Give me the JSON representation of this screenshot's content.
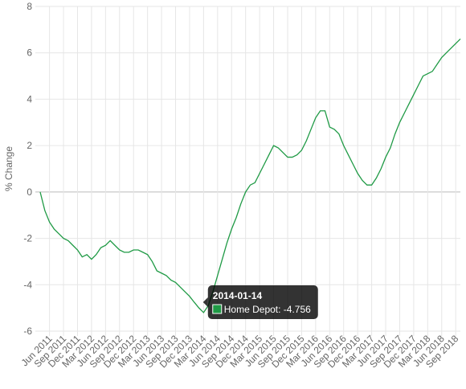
{
  "chart_data": {
    "type": "line",
    "y_label": "% Change",
    "categories": [
      null,
      null,
      "Jun 2011",
      null,
      null,
      "Sep 2011",
      null,
      null,
      "Dec 2011",
      null,
      null,
      "Mar 2012",
      null,
      null,
      "Jun 2012",
      null,
      null,
      "Sep 2012",
      null,
      null,
      "Dec 2012",
      null,
      null,
      "Mar 2013",
      null,
      null,
      "Jun 2013",
      null,
      null,
      "Sep 2013",
      null,
      null,
      "Dec 2013",
      null,
      null,
      "Mar 2014",
      null,
      null,
      "Jun 2014",
      null,
      null,
      "Sep 2014",
      null,
      null,
      "Dec 2014",
      null,
      null,
      "Mar 2015",
      null,
      null,
      "Jun 2015",
      null,
      null,
      "Sep 2015",
      null,
      null,
      "Dec 2015",
      null,
      null,
      "Mar 2016",
      null,
      null,
      "Jun 2016",
      null,
      null,
      "Sep 2016",
      null,
      null,
      "Dec 2016",
      null,
      null,
      "Mar 2017",
      null,
      null,
      "Jun 2017",
      null,
      null,
      "Sep 2017",
      null,
      null,
      "Dec 2017",
      null,
      null,
      "Mar 2018",
      null,
      null,
      "Jun 2018",
      null,
      null,
      "Sep 2018",
      null
    ],
    "series": [
      {
        "name": "Home Depot",
        "color": "#1f9a45",
        "values": [
          0,
          -0.8,
          -1.3,
          -1.6,
          -1.8,
          -2.0,
          -2.1,
          -2.3,
          -2.5,
          -2.8,
          -2.7,
          -2.9,
          -2.7,
          -2.4,
          -2.3,
          -2.1,
          -2.3,
          -2.5,
          -2.6,
          -2.6,
          -2.5,
          -2.5,
          -2.6,
          -2.7,
          -3.0,
          -3.4,
          -3.5,
          -3.6,
          -3.8,
          -3.9,
          -4.1,
          -4.3,
          -4.5,
          -4.756,
          -5.0,
          -5.2,
          -4.9,
          -4.3,
          -3.6,
          -2.9,
          -2.2,
          -1.6,
          -1.1,
          -0.5,
          0.0,
          0.3,
          0.4,
          0.8,
          1.2,
          1.6,
          2.0,
          1.9,
          1.7,
          1.5,
          1.5,
          1.6,
          1.8,
          2.2,
          2.7,
          3.2,
          3.5,
          3.5,
          2.8,
          2.7,
          2.5,
          2.0,
          1.6,
          1.2,
          0.8,
          0.5,
          0.3,
          0.3,
          0.6,
          1.0,
          1.5,
          1.9,
          2.5,
          3.0,
          3.4,
          3.8,
          4.2,
          4.6,
          5.0,
          5.1,
          5.2,
          5.5,
          5.8,
          6.0,
          6.2,
          6.4,
          6.6
        ]
      }
    ],
    "ylim": [
      -6,
      8
    ],
    "yticks": [
      -6,
      -4,
      -2,
      0,
      2,
      4,
      6,
      8
    ],
    "grid": true,
    "tooltip": {
      "title": "2014-01-14",
      "label": "Home Depot: -4.756",
      "index": 33
    }
  }
}
